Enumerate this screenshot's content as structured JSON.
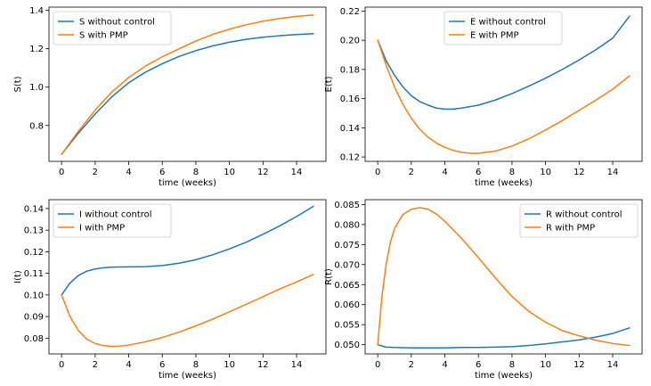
{
  "colors": {
    "series_1": "#1f77b4",
    "series_2": "#ff7f0e",
    "axis": "#000000"
  },
  "chart_data": [
    {
      "type": "line",
      "xlabel": "time (weeks)",
      "ylabel": "S(t)",
      "xlim": [
        -0.75,
        15.75
      ],
      "ylim": [
        0.613,
        1.417
      ],
      "xticks": [
        0,
        2,
        4,
        6,
        8,
        10,
        12,
        14
      ],
      "xtick_labels": [
        "0",
        "2",
        "4",
        "6",
        "8",
        "10",
        "12",
        "14"
      ],
      "yticks": [
        0.8,
        1.0,
        1.2,
        1.4
      ],
      "ytick_labels": [
        "0.8",
        "1.0",
        "1.2",
        "1.4"
      ],
      "legend_position": "top-left",
      "series": [
        {
          "name": "S without control",
          "x": [
            0,
            1,
            2,
            3,
            4,
            5,
            6,
            7,
            8,
            9,
            10,
            11,
            12,
            13,
            14,
            15
          ],
          "y": [
            0.65,
            0.76,
            0.86,
            0.95,
            1.023,
            1.078,
            1.122,
            1.16,
            1.19,
            1.215,
            1.234,
            1.249,
            1.26,
            1.268,
            1.274,
            1.279
          ]
        },
        {
          "name": "S with PMP",
          "x": [
            0,
            1,
            2,
            3,
            4,
            5,
            6,
            7,
            8,
            9,
            10,
            11,
            12,
            13,
            14,
            15
          ],
          "y": [
            0.65,
            0.77,
            0.88,
            0.975,
            1.05,
            1.11,
            1.158,
            1.2,
            1.24,
            1.275,
            1.302,
            1.325,
            1.344,
            1.358,
            1.369,
            1.376
          ]
        }
      ]
    },
    {
      "type": "line",
      "xlabel": "time (weeks)",
      "ylabel": "E(t)",
      "xlim": [
        -0.75,
        15.75
      ],
      "ylim": [
        0.117,
        0.2227
      ],
      "xticks": [
        0,
        2,
        4,
        6,
        8,
        10,
        12,
        14
      ],
      "xtick_labels": [
        "0",
        "2",
        "4",
        "6",
        "8",
        "10",
        "12",
        "14"
      ],
      "yticks": [
        0.12,
        0.14,
        0.16,
        0.18,
        0.2,
        0.22
      ],
      "ytick_labels": [
        "0.12",
        "0.14",
        "0.16",
        "0.18",
        "0.20",
        "0.22"
      ],
      "legend_position": "top-center",
      "series": [
        {
          "name": "E without control",
          "x": [
            0,
            0.5,
            1,
            1.5,
            2,
            2.5,
            3,
            3.5,
            4,
            4.5,
            5,
            6,
            7,
            8,
            9,
            10,
            11,
            12,
            13,
            14,
            15
          ],
          "y": [
            0.2,
            0.186,
            0.176,
            0.168,
            0.162,
            0.158,
            0.1555,
            0.1535,
            0.1528,
            0.1528,
            0.1535,
            0.1555,
            0.159,
            0.1635,
            0.1685,
            0.174,
            0.18,
            0.1865,
            0.1935,
            0.2015,
            0.2165
          ]
        },
        {
          "name": "E with PMP",
          "x": [
            0,
            0.5,
            1,
            1.5,
            2,
            2.5,
            3,
            3.5,
            4,
            4.5,
            5,
            5.5,
            6,
            7,
            8,
            9,
            10,
            11,
            12,
            13,
            14,
            15
          ],
          "y": [
            0.2,
            0.183,
            0.168,
            0.156,
            0.1465,
            0.139,
            0.1335,
            0.1295,
            0.1265,
            0.1245,
            0.1232,
            0.1225,
            0.1225,
            0.124,
            0.1275,
            0.1325,
            0.1385,
            0.145,
            0.152,
            0.159,
            0.1665,
            0.1755
          ]
        }
      ]
    },
    {
      "type": "line",
      "xlabel": "time (weeks)",
      "ylabel": "I(t)",
      "xlim": [
        -0.75,
        15.75
      ],
      "ylim": [
        0.0727,
        0.1441
      ],
      "xticks": [
        0,
        2,
        4,
        6,
        8,
        10,
        12,
        14
      ],
      "xtick_labels": [
        "0",
        "2",
        "4",
        "6",
        "8",
        "10",
        "12",
        "14"
      ],
      "yticks": [
        0.08,
        0.09,
        0.1,
        0.11,
        0.12,
        0.13,
        0.14
      ],
      "ytick_labels": [
        "0.08",
        "0.09",
        "0.10",
        "0.11",
        "0.12",
        "0.13",
        "0.14"
      ],
      "legend_position": "top-left",
      "series": [
        {
          "name": "I without control",
          "x": [
            0,
            0.5,
            1,
            1.5,
            2,
            2.5,
            3,
            4,
            5,
            6,
            7,
            8,
            9,
            10,
            11,
            12,
            13,
            14,
            15
          ],
          "y": [
            0.1,
            0.1055,
            0.109,
            0.111,
            0.112,
            0.1126,
            0.1129,
            0.113,
            0.1131,
            0.1136,
            0.1147,
            0.1163,
            0.1186,
            0.1213,
            0.1244,
            0.1281,
            0.132,
            0.1363,
            0.141
          ]
        },
        {
          "name": "I with PMP",
          "x": [
            0,
            0.5,
            1,
            1.5,
            2,
            2.5,
            3,
            3.5,
            4,
            5,
            6,
            7,
            8,
            9,
            10,
            11,
            12,
            13,
            14,
            15
          ],
          "y": [
            0.1,
            0.09,
            0.0835,
            0.0795,
            0.0775,
            0.0765,
            0.0762,
            0.0763,
            0.0768,
            0.0783,
            0.0803,
            0.0828,
            0.0857,
            0.0888,
            0.0922,
            0.0957,
            0.0992,
            0.1028,
            0.106,
            0.1095
          ]
        }
      ]
    },
    {
      "type": "line",
      "xlabel": "time (weeks)",
      "ylabel": "R(t)",
      "xlim": [
        -0.75,
        15.75
      ],
      "ylim": [
        0.0477,
        0.0862
      ],
      "xticks": [
        0,
        2,
        4,
        6,
        8,
        10,
        12,
        14
      ],
      "xtick_labels": [
        "0",
        "2",
        "4",
        "6",
        "8",
        "10",
        "12",
        "14"
      ],
      "yticks": [
        0.05,
        0.055,
        0.06,
        0.065,
        0.07,
        0.075,
        0.08,
        0.085
      ],
      "ytick_labels": [
        "0.050",
        "0.055",
        "0.060",
        "0.065",
        "0.070",
        "0.075",
        "0.080",
        "0.085"
      ],
      "legend_position": "top-right",
      "series": [
        {
          "name": "R without control",
          "x": [
            0,
            0.5,
            1,
            2,
            3,
            4,
            5,
            6,
            7,
            8,
            9,
            10,
            11,
            12,
            13,
            14,
            15
          ],
          "y": [
            0.05,
            0.0494,
            0.0493,
            0.0492,
            0.0492,
            0.0492,
            0.0493,
            0.0493,
            0.0494,
            0.0495,
            0.0498,
            0.0502,
            0.0507,
            0.0512,
            0.0519,
            0.0528,
            0.0542
          ]
        },
        {
          "name": "R with PMP",
          "x": [
            0,
            0.25,
            0.5,
            0.75,
            1,
            1.5,
            2,
            2.5,
            3,
            3.5,
            4,
            5,
            6,
            7,
            8,
            9,
            10,
            11,
            12,
            13,
            14,
            15
          ],
          "y": [
            0.05,
            0.062,
            0.07,
            0.0755,
            0.079,
            0.0825,
            0.0838,
            0.0842,
            0.0838,
            0.0826,
            0.0808,
            0.0765,
            0.0717,
            0.0667,
            0.062,
            0.0583,
            0.0556,
            0.0535,
            0.0522,
            0.0511,
            0.0503,
            0.0498
          ]
        }
      ]
    }
  ]
}
